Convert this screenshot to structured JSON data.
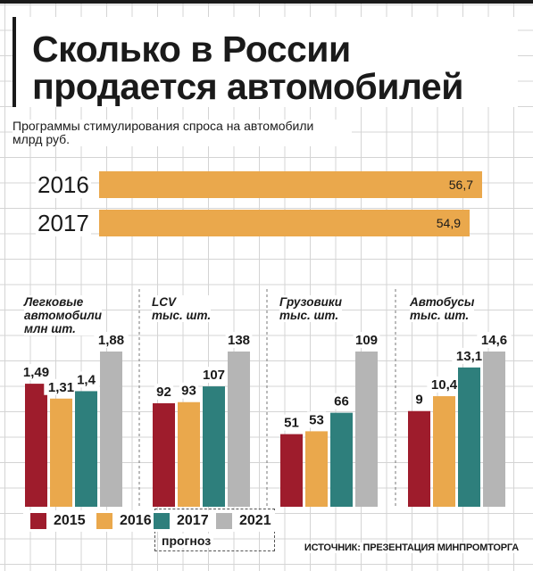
{
  "title": {
    "line1": "Сколько в России",
    "line2": "продается автомобилей"
  },
  "subtitle": {
    "line1": "Программы стимулирования спроса на автомобили",
    "line2": "млрд руб."
  },
  "source": "ИСТОЧНИК: ПРЕЗЕНТАЦИЯ МИНПРОМТОРГА",
  "forecast_label": "прогноз",
  "colors": {
    "2015": "#9e1c2c",
    "2016": "#eaa84c",
    "2017": "#2e7f7c",
    "2021": "#b5b5b5"
  },
  "chart_data": [
    {
      "type": "bar",
      "orientation": "horizontal",
      "categories": [
        "2016",
        "2017"
      ],
      "values": [
        56.7,
        54.9
      ],
      "value_labels": [
        "56,7",
        "54,9"
      ],
      "xlim": [
        0,
        56.7
      ]
    },
    {
      "type": "bar",
      "panels": [
        {
          "label": [
            "Легковые",
            "автомобили",
            "млн шт."
          ],
          "categories": [
            "2015",
            "2016",
            "2017",
            "2021"
          ],
          "values": [
            1.49,
            1.31,
            1.4,
            1.88
          ],
          "value_labels": [
            "1,49",
            "1,31",
            "1,4",
            "1,88"
          ],
          "ylim": [
            0,
            1.88
          ]
        },
        {
          "label": [
            "LCV",
            "тыс. шт."
          ],
          "categories": [
            "2015",
            "2016",
            "2017",
            "2021"
          ],
          "values": [
            92,
            93,
            107,
            138
          ],
          "value_labels": [
            "92",
            "93",
            "107",
            "138"
          ],
          "ylim": [
            0,
            138
          ]
        },
        {
          "label": [
            "Грузовики",
            "тыс. шт."
          ],
          "categories": [
            "2015",
            "2016",
            "2017",
            "2021"
          ],
          "values": [
            51,
            53,
            66,
            109
          ],
          "value_labels": [
            "51",
            "53",
            "66",
            "109"
          ],
          "ylim": [
            0,
            109
          ]
        },
        {
          "label": [
            "Автобусы",
            "тыс. шт."
          ],
          "categories": [
            "2015",
            "2016",
            "2017",
            "2021"
          ],
          "values": [
            9,
            10.4,
            13.1,
            14.6
          ],
          "value_labels": [
            "9",
            "10,4",
            "13,1",
            "14,6"
          ],
          "ylim": [
            0,
            14.6
          ]
        }
      ],
      "legend": [
        "2015",
        "2016",
        "2017",
        "2021"
      ]
    }
  ]
}
